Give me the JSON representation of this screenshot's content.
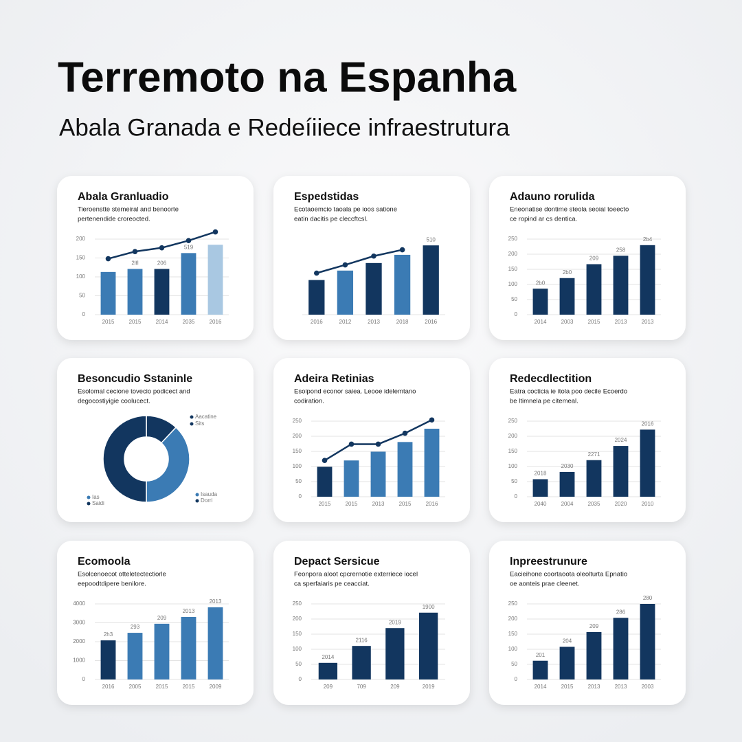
{
  "title": "Terremoto na Espanha",
  "subtitle": "Abala Granada e Redeíiiece infraestrutura",
  "chart_data": [
    {
      "type": "bar",
      "title": "Abala Granluadio",
      "subtitle": [
        "Tieroenstte stemeiral and benoorte",
        "pertenendide croreocted."
      ],
      "categories": [
        "2015",
        "2015",
        "2014",
        "2035",
        "2016"
      ],
      "values": [
        113,
        121,
        121,
        163,
        185
      ],
      "colors": [
        "#3b7bb4",
        "#3b7bb4",
        "#12365f",
        "#3b7bb4",
        "#a9c8e2"
      ],
      "bar_labels": [
        null,
        "2lfl",
        "206",
        "519",
        null
      ],
      "line_values": [
        148,
        167,
        177,
        196,
        219
      ],
      "line_color": "#12365f",
      "ylim": [
        0,
        200
      ],
      "yticks": [
        0,
        50,
        100,
        150,
        200
      ]
    },
    {
      "type": "bar",
      "title": "Espedstidas",
      "subtitle": [
        "Ecotaoemcio taoala pe ioos satione",
        "eatin dacitis pe cleccftcsl."
      ],
      "categories": [
        "2016",
        "2012",
        "2013",
        "2018",
        "2016"
      ],
      "values": [
        55,
        70,
        82,
        95,
        110
      ],
      "colors": [
        "#12365f",
        "#3b7bb4",
        "#12365f",
        "#3b7bb4",
        "#12365f"
      ],
      "bar_labels": [
        null,
        null,
        null,
        null,
        "510"
      ],
      "line_values": [
        66,
        79,
        93,
        103,
        null
      ],
      "line_color": "#12365f",
      "ylim": [
        0,
        120
      ]
    },
    {
      "type": "bar",
      "title": "Adauno rorulida",
      "subtitle": [
        "Eneonatise dontime steola seoial toeecto",
        "ce ropind ar cs dentica."
      ],
      "categories": [
        "2014",
        "2003",
        "2015",
        "2013",
        "2013"
      ],
      "values": [
        86,
        121,
        167,
        195,
        230
      ],
      "colors": [
        "#12365f",
        "#12365f",
        "#12365f",
        "#12365f",
        "#12365f"
      ],
      "bar_labels": [
        "2b0",
        "2b0",
        "209",
        "258",
        "2b4"
      ],
      "ylim": [
        0,
        250
      ],
      "yticks": [
        0,
        50,
        100,
        150,
        200,
        250
      ]
    },
    {
      "type": "pie",
      "title": "Besoncudio Sstaninle",
      "subtitle": [
        "Esolomal cecione tovecio podicect and",
        "degocostiyigie coolucect."
      ],
      "values": [
        12,
        38,
        50
      ],
      "colors": [
        "#12365f",
        "#3b7bb4",
        "#12365f"
      ],
      "legend": [
        {
          "label": "Aacatine",
          "color": "#12365f"
        },
        {
          "label": "Sits",
          "color": "#12365f"
        },
        {
          "label": "Ias",
          "color": "#3b7bb4"
        },
        {
          "label": "Saidi",
          "color": "#12365f"
        },
        {
          "label": "Isauda",
          "color": "#3b7bb4"
        },
        {
          "label": "Dorri",
          "color": "#12365f"
        }
      ]
    },
    {
      "type": "bar",
      "title": "Adeira Retinias",
      "subtitle": [
        "Esoipond econor saiea. Leooe idelemtano",
        "codiration."
      ],
      "categories": [
        "2015",
        "2015",
        "2013",
        "2015",
        "2016"
      ],
      "values": [
        99,
        120,
        149,
        181,
        225
      ],
      "colors": [
        "#12365f",
        "#3b7bb4",
        "#3b7bb4",
        "#3b7bb4",
        "#3b7bb4"
      ],
      "bar_labels": [
        null,
        null,
        null,
        null,
        null
      ],
      "line_values": [
        120,
        174,
        174,
        210,
        254
      ],
      "line_color": "#12365f",
      "ylim": [
        0,
        250
      ],
      "yticks": [
        0,
        50,
        100,
        150,
        200,
        250
      ]
    },
    {
      "type": "bar",
      "title": "Redecdlectition",
      "subtitle": [
        "Eatra cocticia ie itola poo decile Ecoerdo",
        "be ltimnela pe citemeal."
      ],
      "categories": [
        "2040",
        "2004",
        "2035",
        "2020",
        "2010"
      ],
      "values": [
        58,
        82,
        121,
        168,
        222
      ],
      "colors": [
        "#12365f",
        "#12365f",
        "#12365f",
        "#12365f",
        "#12365f"
      ],
      "bar_labels": [
        "2018",
        "2030",
        "2271",
        "2024",
        "2016"
      ],
      "ylim": [
        0,
        250
      ],
      "yticks": [
        0,
        50,
        100,
        150,
        200,
        250
      ]
    },
    {
      "type": "bar",
      "title": "Ecomoola",
      "subtitle": [
        "Esolcenoecot otteletectectiorle",
        "eepoodtdipere benilore."
      ],
      "categories": [
        "2016",
        "2005",
        "2015",
        "2015",
        "2009"
      ],
      "values": [
        2070,
        2470,
        2950,
        3310,
        3820
      ],
      "colors": [
        "#12365f",
        "#3b7bb4",
        "#3b7bb4",
        "#3b7bb4",
        "#3b7bb4"
      ],
      "bar_labels": [
        "2h3",
        "293",
        "209",
        "2013",
        "2013"
      ],
      "ylim": [
        0,
        4000
      ],
      "yticks": [
        0,
        1000,
        2000,
        3000,
        4000
      ]
    },
    {
      "type": "bar",
      "title": "Depact Sersicue",
      "subtitle": [
        "Feonpora aloot cpcrernotie exterriece iocel",
        "ca sperfaiaris pe ceacciat."
      ],
      "categories": [
        "209",
        "709",
        "209",
        "2019"
      ],
      "values": [
        55,
        111,
        170,
        221
      ],
      "colors": [
        "#12365f",
        "#12365f",
        "#12365f",
        "#12365f"
      ],
      "bar_labels": [
        "2014",
        "2116",
        "2019",
        "1900"
      ],
      "ylim": [
        0,
        250
      ],
      "yticks": [
        0,
        50,
        100,
        150,
        200,
        250
      ]
    },
    {
      "type": "bar",
      "title": "Inpreestrunure",
      "subtitle": [
        "Eacieihone coortaoota oleolturta Epnatio",
        "oe aonteis prae cleenet."
      ],
      "categories": [
        "2014",
        "2015",
        "2013",
        "2013",
        "2003"
      ],
      "values": [
        62,
        108,
        157,
        204,
        250
      ],
      "colors": [
        "#12365f",
        "#12365f",
        "#12365f",
        "#12365f",
        "#12365f"
      ],
      "bar_labels": [
        "201",
        "204",
        "209",
        "286",
        "280"
      ],
      "ylim": [
        0,
        250
      ],
      "yticks": [
        0,
        50,
        100,
        150,
        200,
        250
      ]
    }
  ]
}
